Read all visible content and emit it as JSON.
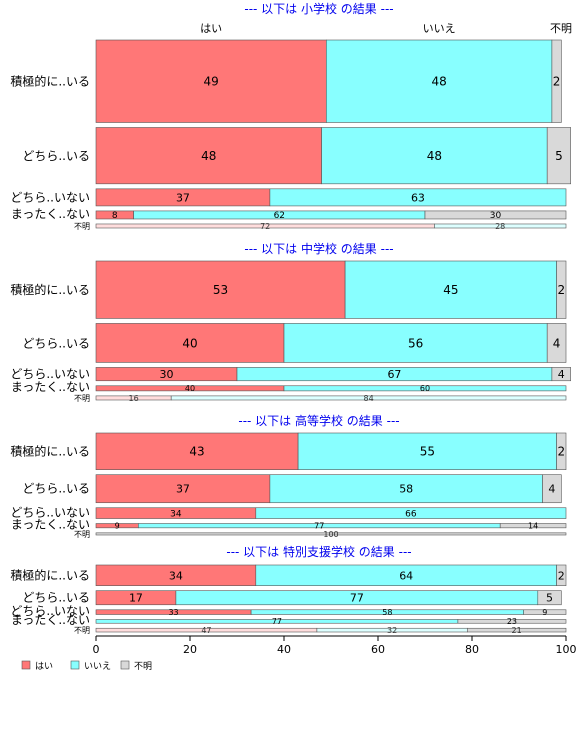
{
  "colors": {
    "yes": "#ff7777",
    "no": "#88ffff",
    "unknown": "#d9d9d9",
    "title": "#0000ee",
    "border": "#555555"
  },
  "legend": {
    "yes": "はい",
    "no": "いいえ",
    "unknown": "不明"
  },
  "header_labels": {
    "yes": "はい",
    "no": "いいえ",
    "unknown": "不明"
  },
  "axis": {
    "ticks": [
      "0",
      "20",
      "40",
      "60",
      "80",
      "100"
    ]
  },
  "chart_data": {
    "type": "bar",
    "stacked": true,
    "orientation": "horizontal",
    "variable_width": true,
    "xlim": [
      0,
      100
    ],
    "legend_position": "bottom-left",
    "series_names": [
      "はい",
      "いいえ",
      "不明"
    ],
    "panels": [
      {
        "title": "--- 以下は 小学校 の結果 ---",
        "rows": [
          {
            "label": "積極的に..いる",
            "weight": 82,
            "values": [
              49,
              48,
              2
            ],
            "labels": [
              "49",
              "48",
              "2"
            ]
          },
          {
            "label": "どちら..いる",
            "weight": 56,
            "values": [
              48,
              48,
              5
            ],
            "labels": [
              "48",
              "48",
              "5"
            ]
          },
          {
            "label": "どちら..いない",
            "weight": 17,
            "values": [
              37,
              63,
              0
            ],
            "labels": [
              "37",
              "63",
              ""
            ]
          },
          {
            "label": "まったく..ない",
            "weight": 8,
            "values": [
              8,
              62,
              30
            ],
            "labels": [
              "8",
              "62",
              "30"
            ]
          },
          {
            "label": "不明",
            "weight": 4,
            "values": [
              72,
              28,
              0
            ],
            "labels": [
              "72",
              "28",
              ""
            ],
            "light": true
          }
        ]
      },
      {
        "title": "--- 以下は 中学校 の結果 ---",
        "rows": [
          {
            "label": "積極的に..いる",
            "weight": 56,
            "values": [
              53,
              45,
              2
            ],
            "labels": [
              "53",
              "45",
              "2"
            ]
          },
          {
            "label": "どちら..いる",
            "weight": 38,
            "values": [
              40,
              56,
              4
            ],
            "labels": [
              "40",
              "56",
              "4"
            ]
          },
          {
            "label": "どちら..いない",
            "weight": 13,
            "values": [
              30,
              67,
              4
            ],
            "labels": [
              "30",
              "67",
              "4"
            ]
          },
          {
            "label": "まったく..ない",
            "weight": 5,
            "values": [
              40,
              60,
              0
            ],
            "labels": [
              "40",
              "60",
              ""
            ]
          },
          {
            "label": "不明",
            "weight": 4,
            "values": [
              16,
              84,
              0
            ],
            "labels": [
              "16",
              "84",
              ""
            ],
            "light": true
          }
        ]
      },
      {
        "title": "--- 以下は 高等学校 の結果 ---",
        "rows": [
          {
            "label": "積極的に..いる",
            "weight": 34,
            "values": [
              43,
              55,
              2
            ],
            "labels": [
              "43",
              "55",
              "2"
            ]
          },
          {
            "label": "どちら..いる",
            "weight": 26,
            "values": [
              37,
              58,
              4
            ],
            "labels": [
              "37",
              "58",
              "4"
            ]
          },
          {
            "label": "どちら..いない",
            "weight": 10,
            "values": [
              34,
              66,
              0
            ],
            "labels": [
              "34",
              "66",
              ""
            ]
          },
          {
            "label": "まったく..ない",
            "weight": 4,
            "values": [
              9,
              77,
              14
            ],
            "labels": [
              "9",
              "77",
              "14"
            ]
          },
          {
            "label": "不明",
            "weight": 2,
            "values": [
              0,
              0,
              100
            ],
            "labels": [
              "",
              "",
              "100"
            ],
            "light": true
          }
        ]
      },
      {
        "title": "--- 以下は 特別支援学校 の結果 ---",
        "rows": [
          {
            "label": "積極的に..いる",
            "weight": 22,
            "values": [
              34,
              64,
              2
            ],
            "labels": [
              "34",
              "64",
              "2"
            ]
          },
          {
            "label": "どちら..いる",
            "weight": 15,
            "values": [
              17,
              77,
              5
            ],
            "labels": [
              "17",
              "77",
              "5"
            ]
          },
          {
            "label": "どちら..いない",
            "weight": 5,
            "values": [
              33,
              58,
              9
            ],
            "labels": [
              "33",
              "58",
              "9"
            ]
          },
          {
            "label": "まったく..ない",
            "weight": 4,
            "values": [
              0,
              77,
              23
            ],
            "labels": [
              "",
              "77",
              "23"
            ]
          },
          {
            "label": "不明",
            "weight": 4,
            "values": [
              47,
              32,
              21
            ],
            "labels": [
              "47",
              "32",
              "21"
            ],
            "light": true
          }
        ]
      }
    ]
  }
}
